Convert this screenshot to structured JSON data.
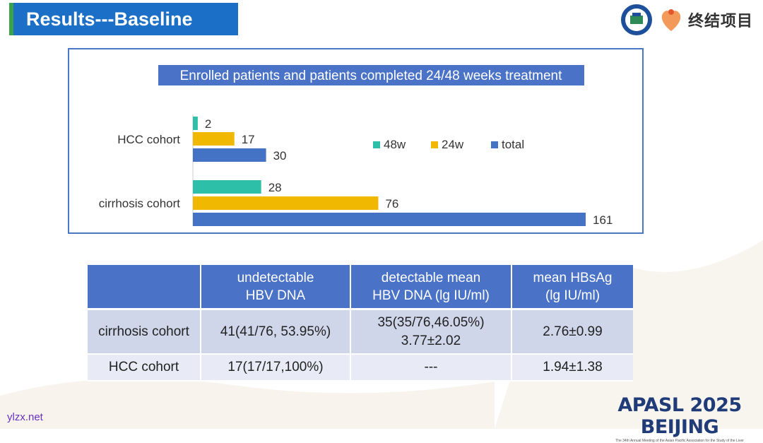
{
  "slide": {
    "title": "Results---Baseline",
    "logo_text": "终结项目",
    "footer_watermark": "ylzx.net",
    "brand": "APASL 2025 BEIJING",
    "brand_sub": "The 34th Annual Meeting of the Asian Pacific Association for the Study of the Liver"
  },
  "colors": {
    "w48": "#2ebfa8",
    "w24": "#f0b800",
    "total": "#4472c4",
    "title_bg": "#1b6fc7",
    "header_bg": "#4a73c8"
  },
  "chart_data": {
    "type": "bar",
    "orientation": "horizontal",
    "title": "Enrolled patients and patients completed 24/48 weeks treatment",
    "categories": [
      "HCC cohort",
      "cirrhosis cohort"
    ],
    "series": [
      {
        "name": "48w",
        "values": [
          2,
          28
        ]
      },
      {
        "name": "24w",
        "values": [
          17,
          76
        ]
      },
      {
        "name": "total",
        "values": [
          30,
          161
        ]
      }
    ],
    "legend_position": "right",
    "xlabel": "",
    "ylabel": ""
  },
  "table": {
    "headers": [
      "",
      "undetectable\nHBV DNA",
      "detectable mean\nHBV DNA (lg IU/ml)",
      "mean HBsAg\n(lg IU/ml)"
    ],
    "rows": [
      {
        "label": "cirrhosis cohort",
        "undetectable": "41(41/76, 53.95%)",
        "detectable_count": "35(35/76,46.05%)",
        "detectable_mean": "3.77±2.02",
        "hbsag": "2.76±0.99"
      },
      {
        "label": "HCC cohort",
        "undetectable": "17(17/17,100%)",
        "detectable_count": "---",
        "detectable_mean": "",
        "hbsag": "1.94±1.38"
      }
    ]
  }
}
